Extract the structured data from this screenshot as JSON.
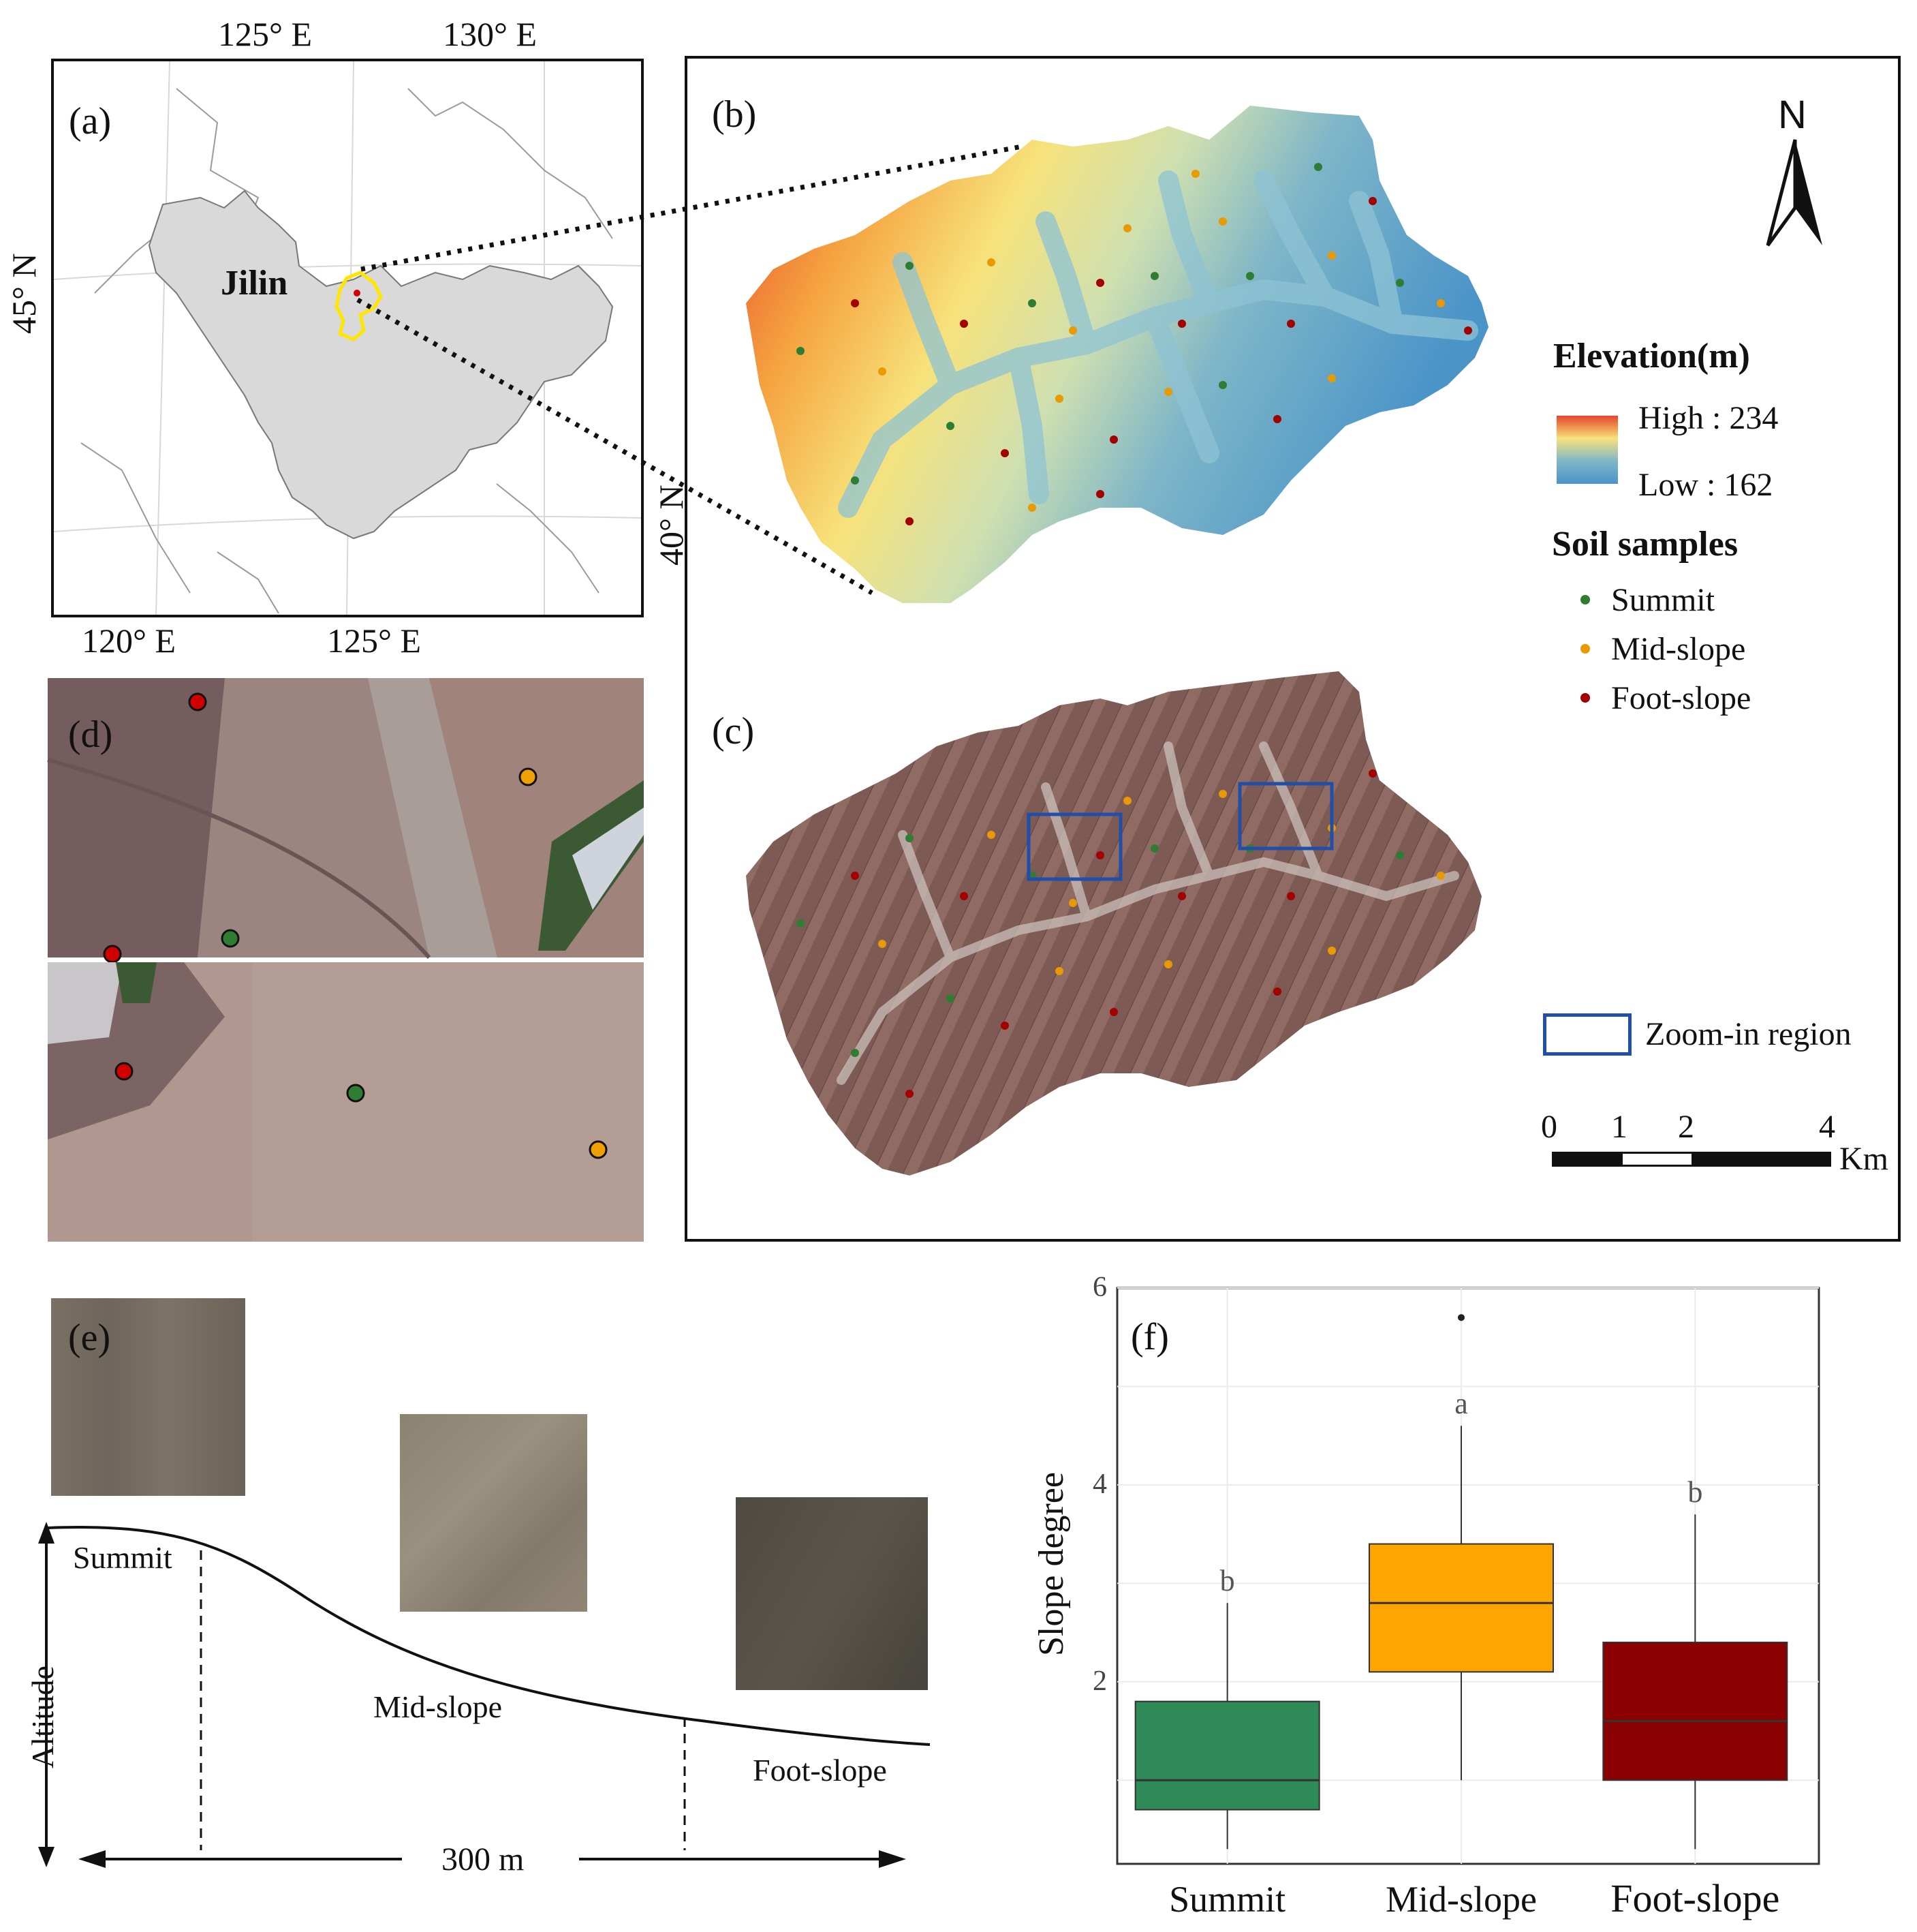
{
  "panel_a": {
    "label": "(a)",
    "region_label": "Jilin",
    "top_ticks": [
      "125° E",
      "130° E"
    ],
    "bottom_ticks": [
      "120° E",
      "125° E"
    ],
    "left_tick": "45° N"
  },
  "panel_b": {
    "label": "(b)",
    "left_tick": "40° N"
  },
  "panel_c": {
    "label": "(c)"
  },
  "panel_d": {
    "label": "(d)"
  },
  "panel_e": {
    "label": "(e)",
    "positions": [
      "Summit",
      "Mid-slope",
      "Foot-slope"
    ],
    "y_axis": "Altitude",
    "distance": "300 m"
  },
  "north_arrow": "N",
  "legend": {
    "elevation_title": "Elevation(m)",
    "high": "High : 234",
    "low": "Low : 162",
    "samples_title": "Soil samples",
    "samples": [
      {
        "label": "Summit",
        "color": "#2e7d32"
      },
      {
        "label": "Mid-slope",
        "color": "#e89a00"
      },
      {
        "label": "Foot-slope",
        "color": "#a30000"
      }
    ],
    "zoom_label": "Zoom-in region",
    "zoom_color": "#1f4fa8",
    "scale_ticks": [
      "0",
      "1",
      "2",
      "4"
    ],
    "scale_unit": "Km"
  },
  "chart_data": {
    "type": "box",
    "panel_label": "(f)",
    "ylabel": "Slope degree",
    "ylim": [
      0,
      6
    ],
    "yticks": [
      "2",
      "4",
      "6"
    ],
    "categories": [
      "Summit",
      "Mid-slope",
      "Foot-slope"
    ],
    "colors": [
      "#2e8b57",
      "#ffa500",
      "#8b0000"
    ],
    "boxes": [
      {
        "category": "Summit",
        "whisker_low": 0.3,
        "q1": 0.7,
        "median": 1.0,
        "q3": 1.8,
        "whisker_high": 2.8,
        "outliers": [],
        "letter": "b"
      },
      {
        "category": "Mid-slope",
        "whisker_low": 1.0,
        "q1": 2.1,
        "median": 2.8,
        "q3": 3.4,
        "whisker_high": 4.6,
        "outliers": [
          5.7
        ],
        "letter": "a"
      },
      {
        "category": "Foot-slope",
        "whisker_low": 0.3,
        "q1": 1.0,
        "median": 1.6,
        "q3": 2.4,
        "whisker_high": 3.7,
        "outliers": [],
        "letter": "b"
      }
    ]
  }
}
